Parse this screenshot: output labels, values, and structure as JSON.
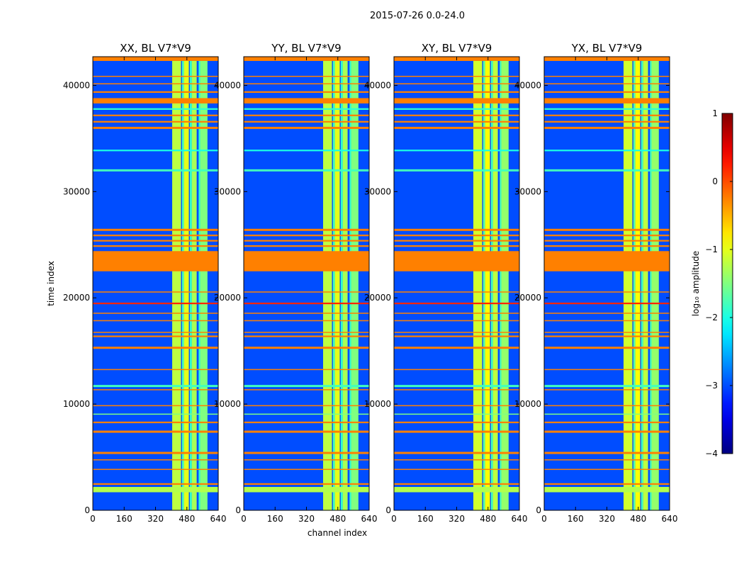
{
  "chart_data": {
    "type": "heatmap",
    "suptitle": "2015-07-26 0.0-24.0",
    "xlabel": "channel index",
    "ylabel": "time index",
    "xlim": [
      0,
      640
    ],
    "ylim": [
      0,
      42700
    ],
    "xticks": [
      "0",
      "160",
      "320",
      "480",
      "640"
    ],
    "yticks": [
      "0",
      "10000",
      "20000",
      "30000",
      "40000"
    ],
    "colorbar": {
      "label": "log₁₀ amplitude",
      "range": [
        -4,
        1
      ],
      "ticks": [
        "1",
        "0",
        "−1",
        "−2",
        "−3",
        "−4"
      ],
      "colormap": "jet"
    },
    "panels": [
      {
        "title": "XX, BL V7*V9",
        "polarization": "XX",
        "baseline": "V7*V9"
      },
      {
        "title": "YY, BL V7*V9",
        "polarization": "YY",
        "baseline": "V7*V9"
      },
      {
        "title": "XY, BL V7*V9",
        "polarization": "XY",
        "baseline": "V7*V9"
      },
      {
        "title": "YX, BL V7*V9",
        "polarization": "YX",
        "baseline": "V7*V9"
      }
    ],
    "background_level": -3.0,
    "rfi_channel_bands": [
      {
        "start": 405,
        "end": 450,
        "level": -1.2
      },
      {
        "start": 455,
        "end": 465,
        "level": -1.8
      },
      {
        "start": 465,
        "end": 490,
        "level": -1.0
      },
      {
        "start": 495,
        "end": 505,
        "level": -1.9
      },
      {
        "start": 505,
        "end": 530,
        "level": -1.3
      },
      {
        "start": 540,
        "end": 548,
        "level": -1.9
      },
      {
        "start": 548,
        "end": 585,
        "level": -1.5
      }
    ],
    "flagged_time_rows": [
      {
        "t0": 1700,
        "t1": 2200,
        "level": -1.25
      },
      {
        "t0": 2400,
        "t1": 2550,
        "level": -0.25
      },
      {
        "t0": 3800,
        "t1": 3900,
        "level": -0.25
      },
      {
        "t0": 4700,
        "t1": 4800,
        "level": -0.25
      },
      {
        "t0": 5300,
        "t1": 5500,
        "level": -0.25
      },
      {
        "t0": 7300,
        "t1": 7500,
        "level": -0.25
      },
      {
        "t0": 8200,
        "t1": 8350,
        "level": -0.25
      },
      {
        "t0": 9000,
        "t1": 9100,
        "level": -1.5
      },
      {
        "t0": 9800,
        "t1": 9900,
        "level": -0.25
      },
      {
        "t0": 11300,
        "t1": 11400,
        "level": -0.25
      },
      {
        "t0": 11600,
        "t1": 11800,
        "level": -1.8
      },
      {
        "t0": 13200,
        "t1": 13300,
        "level": -0.25
      },
      {
        "t0": 15200,
        "t1": 15400,
        "level": -0.25
      },
      {
        "t0": 16300,
        "t1": 16450,
        "level": -0.25
      },
      {
        "t0": 16700,
        "t1": 16800,
        "level": -0.25
      },
      {
        "t0": 17800,
        "t1": 17900,
        "level": -0.25
      },
      {
        "t0": 18500,
        "t1": 18600,
        "level": -0.25
      },
      {
        "t0": 19400,
        "t1": 19550,
        "level": 0.2
      },
      {
        "t0": 20500,
        "t1": 20600,
        "level": -0.25
      },
      {
        "t0": 22500,
        "t1": 24400,
        "level": -0.25
      },
      {
        "t0": 24800,
        "t1": 24950,
        "level": -0.25
      },
      {
        "t0": 25300,
        "t1": 25450,
        "level": -0.25
      },
      {
        "t0": 25800,
        "t1": 25950,
        "level": -0.25
      },
      {
        "t0": 26300,
        "t1": 26500,
        "level": -0.25
      },
      {
        "t0": 31900,
        "t1": 32100,
        "level": -1.8
      },
      {
        "t0": 33800,
        "t1": 33950,
        "level": -2.0
      },
      {
        "t0": 35900,
        "t1": 36100,
        "level": -0.25
      },
      {
        "t0": 36500,
        "t1": 36650,
        "level": -0.25
      },
      {
        "t0": 37100,
        "t1": 37250,
        "level": -0.25
      },
      {
        "t0": 37700,
        "t1": 37850,
        "level": -1.9
      },
      {
        "t0": 38300,
        "t1": 38800,
        "level": -0.25
      },
      {
        "t0": 39300,
        "t1": 39450,
        "level": -0.25
      },
      {
        "t0": 40100,
        "t1": 40200,
        "level": -0.25
      },
      {
        "t0": 40800,
        "t1": 40900,
        "level": -0.25
      },
      {
        "t0": 42300,
        "t1": 42700,
        "level": -0.25
      }
    ]
  }
}
